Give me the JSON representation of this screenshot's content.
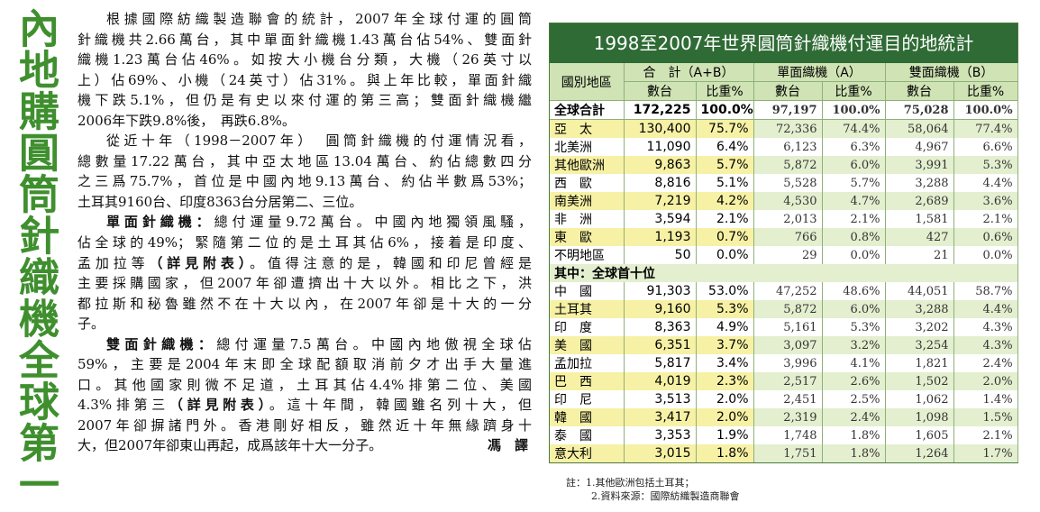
{
  "headline": "內地購圓筒針織機全球第一",
  "article": {
    "paragraphs": [
      [
        "根據國際紡織製造聯會的統計，2007年全球付運的圓筒",
        "針織機共2.66萬台，其中單面針織機1.43萬台佔54%、雙面針",
        "織機1.23萬台佔46%。如按大小機台分類，大機（26英寸以",
        "上）佔69%、小機（24英寸）佔31%。與上年比較，單面針織",
        "機下跌5.1%，但仍是有史以來付運的第三高；雙面針織機繼",
        "2006年下跌9.8%後，　再跌6.8%。"
      ],
      [
        "從近十年（1998－2007年）　圓筒針織機的付運情況看，",
        "總數量17.22萬台，其中亞太地區13.04萬台、約佔總數四分",
        "之三爲75.7%，首位是中國內地9.13萬台、約佔半數爲53%；",
        "土耳其9160台、印度8363台分居第二、三位。"
      ],
      [
        [
          {
            "bold": "單面針織機："
          },
          "總付運量9.72萬台。中國內地獨領風騷，"
        ],
        "佔全球的49%；緊隨第二位的是土耳其佔6%，接着是印度、",
        [
          "孟加拉等",
          {
            "bold": "（詳見附表）"
          },
          "。值得注意的是，韓國和印尼曾經是"
        ],
        "主要採購國家，但2007年卻遭擠出十大以外。相比之下，洪",
        "都拉斯和秘魯雖然不在十大以內，在2007年卻是十大的一分",
        "子。"
      ],
      [
        [
          {
            "bold": "雙面針織機："
          },
          "總付運量7.5萬台。中國內地傲視全球佔"
        ],
        "59%，主要是2004年末即全球配額取消前夕才出手大量進",
        "口。其他國家則微不足道，土耳其佔4.4%排第二位、美國",
        [
          "4.3%排第三",
          {
            "bold": "（詳見附表）"
          },
          "。這十年間，韓國雖名列十大，但"
        ],
        "2007年卻摒諸門外。香港剛好相反，雖然近十年無緣躋身十",
        "大，但2007年卻東山再起，成爲該年十大一分子。"
      ]
    ],
    "byline": "馮　譯"
  },
  "table": {
    "title": "1998至2007年世界圓筒針織機付運目的地統計",
    "region_header": "國別地區",
    "groups": [
      "合　計（A+B）",
      "單面織機（A）",
      "雙面織機（B）"
    ],
    "subheaders": [
      "數台",
      "比重%",
      "數台",
      "比重%",
      "數台",
      "比重%"
    ],
    "rows": [
      [
        "全球合計",
        "172,225",
        "100.0%",
        "97,197",
        "100.0%",
        "75,028",
        "100.0%"
      ],
      [
        "亞　太",
        "130,400",
        "75.7%",
        "72,336",
        "74.4%",
        "58,064",
        "77.4%"
      ],
      [
        "北美洲",
        "11,090",
        "6.4%",
        "6,123",
        "6.3%",
        "4,967",
        "6.6%"
      ],
      [
        "其他歐洲",
        "9,863",
        "5.7%",
        "5,872",
        "6.0%",
        "3,991",
        "5.3%"
      ],
      [
        "西　歐",
        "8,816",
        "5.1%",
        "5,528",
        "5.7%",
        "3,288",
        "4.4%"
      ],
      [
        "南美洲",
        "7,219",
        "4.2%",
        "4,530",
        "4.7%",
        "2,689",
        "3.6%"
      ],
      [
        "非　洲",
        "3,594",
        "2.1%",
        "2,013",
        "2.1%",
        "1,581",
        "2.1%"
      ],
      [
        "東　歐",
        "1,193",
        "0.7%",
        "766",
        "0.8%",
        "427",
        "0.6%"
      ],
      [
        "不明地區",
        "50",
        "0.0%",
        "29",
        "0.0%",
        "21",
        "0.0%"
      ]
    ],
    "section": "其中：全球首十位",
    "top_rows": [
      [
        "中　國",
        "91,303",
        "53.0%",
        "47,252",
        "48.6%",
        "44,051",
        "58.7%"
      ],
      [
        "土耳其",
        "9,160",
        "5.3%",
        "5,872",
        "6.0%",
        "3,288",
        "4.4%"
      ],
      [
        "印　度",
        "8,363",
        "4.9%",
        "5,161",
        "5.3%",
        "3,202",
        "4.3%"
      ],
      [
        "美　國",
        "6,351",
        "3.7%",
        "3,097",
        "3.2%",
        "3,254",
        "4.3%"
      ],
      [
        "孟加拉",
        "5,817",
        "3.4%",
        "3,996",
        "4.1%",
        "1,821",
        "2.4%"
      ],
      [
        "巴　西",
        "4,019",
        "2.3%",
        "2,517",
        "2.6%",
        "1,502",
        "2.0%"
      ],
      [
        "印　尼",
        "3,513",
        "2.0%",
        "2,451",
        "2.5%",
        "1,062",
        "1.4%"
      ],
      [
        "韓　國",
        "3,417",
        "2.0%",
        "2,319",
        "2.4%",
        "1,098",
        "1.5%"
      ],
      [
        "泰　國",
        "3,353",
        "1.9%",
        "1,748",
        "1.8%",
        "1,605",
        "2.1%"
      ],
      [
        "意大利",
        "3,015",
        "1.8%",
        "1,751",
        "1.8%",
        "1,264",
        "1.7%"
      ]
    ],
    "notes": [
      "註：1.其他歐洲包括土耳其；",
      "2.資料來源：國際紡織製造商聯會"
    ]
  }
}
